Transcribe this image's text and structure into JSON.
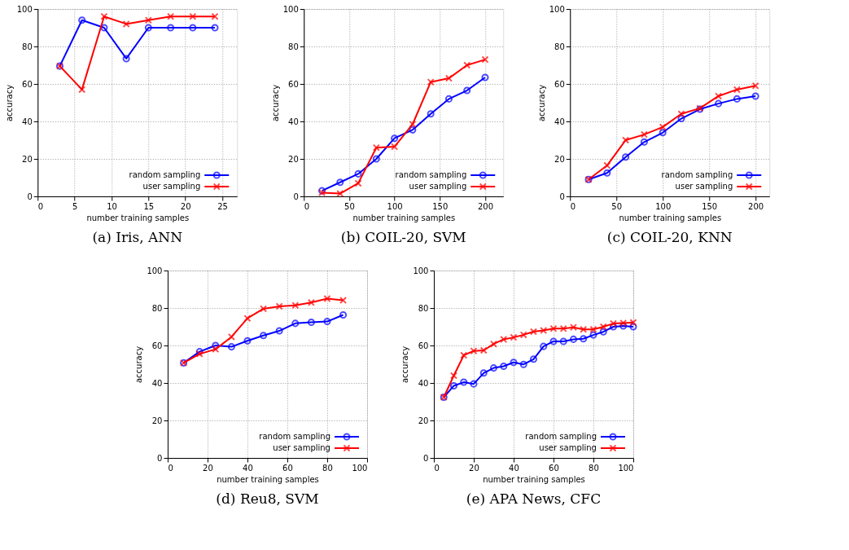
{
  "chart_data": [
    {
      "type": "line",
      "title": "(a) Iris, ANN",
      "xlabel": "number training samples",
      "ylabel": "accuracy",
      "xlim": [
        0,
        27
      ],
      "xticks": [
        0,
        5,
        10,
        15,
        20,
        25
      ],
      "ylim": [
        0,
        100
      ],
      "yticks": [
        0,
        20,
        40,
        60,
        80,
        100
      ],
      "grid": true,
      "legend": "bottom right",
      "x": [
        3,
        6,
        9,
        12,
        15,
        18,
        21,
        24
      ],
      "series": [
        {
          "name": "random sampling",
          "color": "#0000ff",
          "marker": "circle",
          "values": [
            69.5,
            94,
            90,
            73.5,
            90,
            90,
            90,
            90
          ]
        },
        {
          "name": "user sampling",
          "color": "#ff0000",
          "marker": "cross",
          "values": [
            69.5,
            57,
            96,
            92,
            94,
            96,
            96,
            96
          ]
        }
      ]
    },
    {
      "type": "line",
      "title": "(b) COIL-20, SVM",
      "xlabel": "number training samples",
      "ylabel": "accuracy",
      "xlim": [
        0,
        220
      ],
      "xticks": [
        0,
        50,
        100,
        150,
        200
      ],
      "ylim": [
        0,
        100
      ],
      "yticks": [
        0,
        20,
        40,
        60,
        80,
        100
      ],
      "grid": true,
      "legend": "bottom right",
      "x": [
        20,
        40,
        60,
        80,
        100,
        120,
        140,
        160,
        180,
        200
      ],
      "series": [
        {
          "name": "random sampling",
          "color": "#0000ff",
          "marker": "circle",
          "values": [
            3,
            7.5,
            12,
            20,
            31,
            35.5,
            44,
            52,
            56.5,
            63.5
          ]
        },
        {
          "name": "user sampling",
          "color": "#ff0000",
          "marker": "cross",
          "values": [
            2,
            1.5,
            7,
            26,
            26.5,
            38.5,
            61,
            63,
            70,
            73
          ]
        }
      ]
    },
    {
      "type": "line",
      "title": "(c) COIL-20, KNN",
      "xlabel": "number training samples",
      "ylabel": "accuracy",
      "xlim": [
        0,
        215
      ],
      "xticks": [
        0,
        50,
        100,
        150,
        200
      ],
      "ylim": [
        0,
        100
      ],
      "yticks": [
        0,
        20,
        40,
        60,
        80,
        100
      ],
      "grid": true,
      "legend": "bottom right",
      "x": [
        20,
        40,
        60,
        80,
        100,
        120,
        140,
        160,
        180,
        200
      ],
      "series": [
        {
          "name": "random sampling",
          "color": "#0000ff",
          "marker": "circle",
          "values": [
            9,
            12.5,
            21,
            29,
            34,
            41.5,
            46.5,
            49.5,
            52,
            53.5
          ]
        },
        {
          "name": "user sampling",
          "color": "#ff0000",
          "marker": "cross",
          "values": [
            9,
            16.5,
            30,
            33,
            37,
            44,
            47,
            53.5,
            57,
            59
          ]
        }
      ]
    },
    {
      "type": "line",
      "title": "(d) Reu8, SVM",
      "xlabel": "number training samples",
      "ylabel": "accuracy",
      "xlim": [
        0,
        100
      ],
      "xticks": [
        0,
        20,
        40,
        60,
        80,
        100
      ],
      "ylim": [
        0,
        100
      ],
      "yticks": [
        0,
        20,
        40,
        60,
        80,
        100
      ],
      "grid": true,
      "legend": "bottom right",
      "x": [
        8,
        16,
        24,
        32,
        40,
        48,
        56,
        64,
        72,
        80,
        88
      ],
      "series": [
        {
          "name": "random sampling",
          "color": "#0000ff",
          "marker": "circle",
          "values": [
            50.7,
            56.7,
            60,
            59.3,
            62.5,
            65.3,
            67.8,
            71.8,
            72.4,
            72.8,
            76.3
          ]
        },
        {
          "name": "user sampling",
          "color": "#ff0000",
          "marker": "cross",
          "values": [
            50.7,
            55.5,
            58,
            64.6,
            74.5,
            79.6,
            80.9,
            81.4,
            82.9,
            85,
            84.1
          ]
        }
      ]
    },
    {
      "type": "line",
      "title": "(e) APA News, CFC",
      "xlabel": "number training samples",
      "ylabel": "accuracy",
      "xlim": [
        0,
        100
      ],
      "xticks": [
        0,
        20,
        40,
        60,
        80,
        100
      ],
      "ylim": [
        0,
        100
      ],
      "yticks": [
        0,
        20,
        40,
        60,
        80,
        100
      ],
      "grid": true,
      "legend": "bottom right",
      "x": [
        5,
        10,
        15,
        20,
        25,
        30,
        35,
        40,
        45,
        50,
        55,
        60,
        65,
        70,
        75,
        80,
        85,
        90,
        95,
        100
      ],
      "series": [
        {
          "name": "random sampling",
          "color": "#0000ff",
          "marker": "circle",
          "values": [
            32.4,
            38.5,
            40.4,
            39.5,
            45.3,
            48,
            48.9,
            51,
            49.9,
            52.7,
            59.5,
            62.2,
            62.2,
            63.3,
            63.6,
            65.6,
            67.3,
            70,
            70.4,
            70
          ]
        },
        {
          "name": "user sampling",
          "color": "#ff0000",
          "marker": "cross",
          "values": [
            32.4,
            43.9,
            54.8,
            57.1,
            57.4,
            60.8,
            63.3,
            64.3,
            65.7,
            67.4,
            68,
            69,
            69,
            69.7,
            68.6,
            68.6,
            70,
            71.7,
            72,
            72.3
          ]
        }
      ]
    }
  ]
}
